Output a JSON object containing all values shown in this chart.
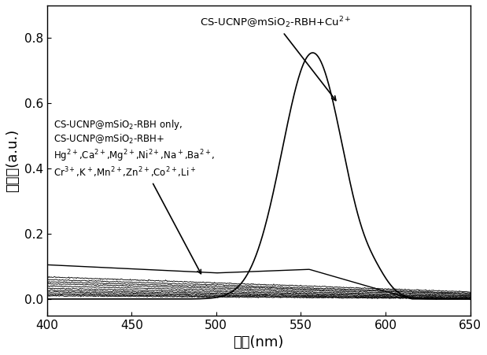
{
  "xlabel": "波长(nm)",
  "ylabel": "吸光度(a.u.)",
  "xlim": [
    400,
    650
  ],
  "ylim": [
    -0.05,
    0.9
  ],
  "xticks": [
    400,
    450,
    500,
    550,
    600,
    650
  ],
  "yticks": [
    0.0,
    0.2,
    0.4,
    0.6,
    0.8
  ],
  "annotation_cu": "CS-UCNP@mSiO$_2$-RBH+Cu$^{2+}$",
  "annotation_others_line1": "CS-UCNP@mSiO$_2$-RBH only,",
  "annotation_others_line2": "CS-UCNP@mSiO$_2$-RBH+",
  "annotation_others_line3": "Hg$^{2+}$,Ca$^{2+}$,Mg$^{2+}$,Ni$^{2+}$,Na$^+$,Ba$^{2+}$,",
  "annotation_others_line4": "Cr$^{3+}$,K$^+$,Mn$^{2+}$,Zn$^{2+}$,Co$^{2+}$,Li$^+$",
  "peak_wavelength": 557,
  "peak_absorbance": 0.755,
  "background_color": "#ffffff",
  "fontsize_label": 13,
  "fontsize_tick": 11,
  "fontsize_annot": 9.5
}
